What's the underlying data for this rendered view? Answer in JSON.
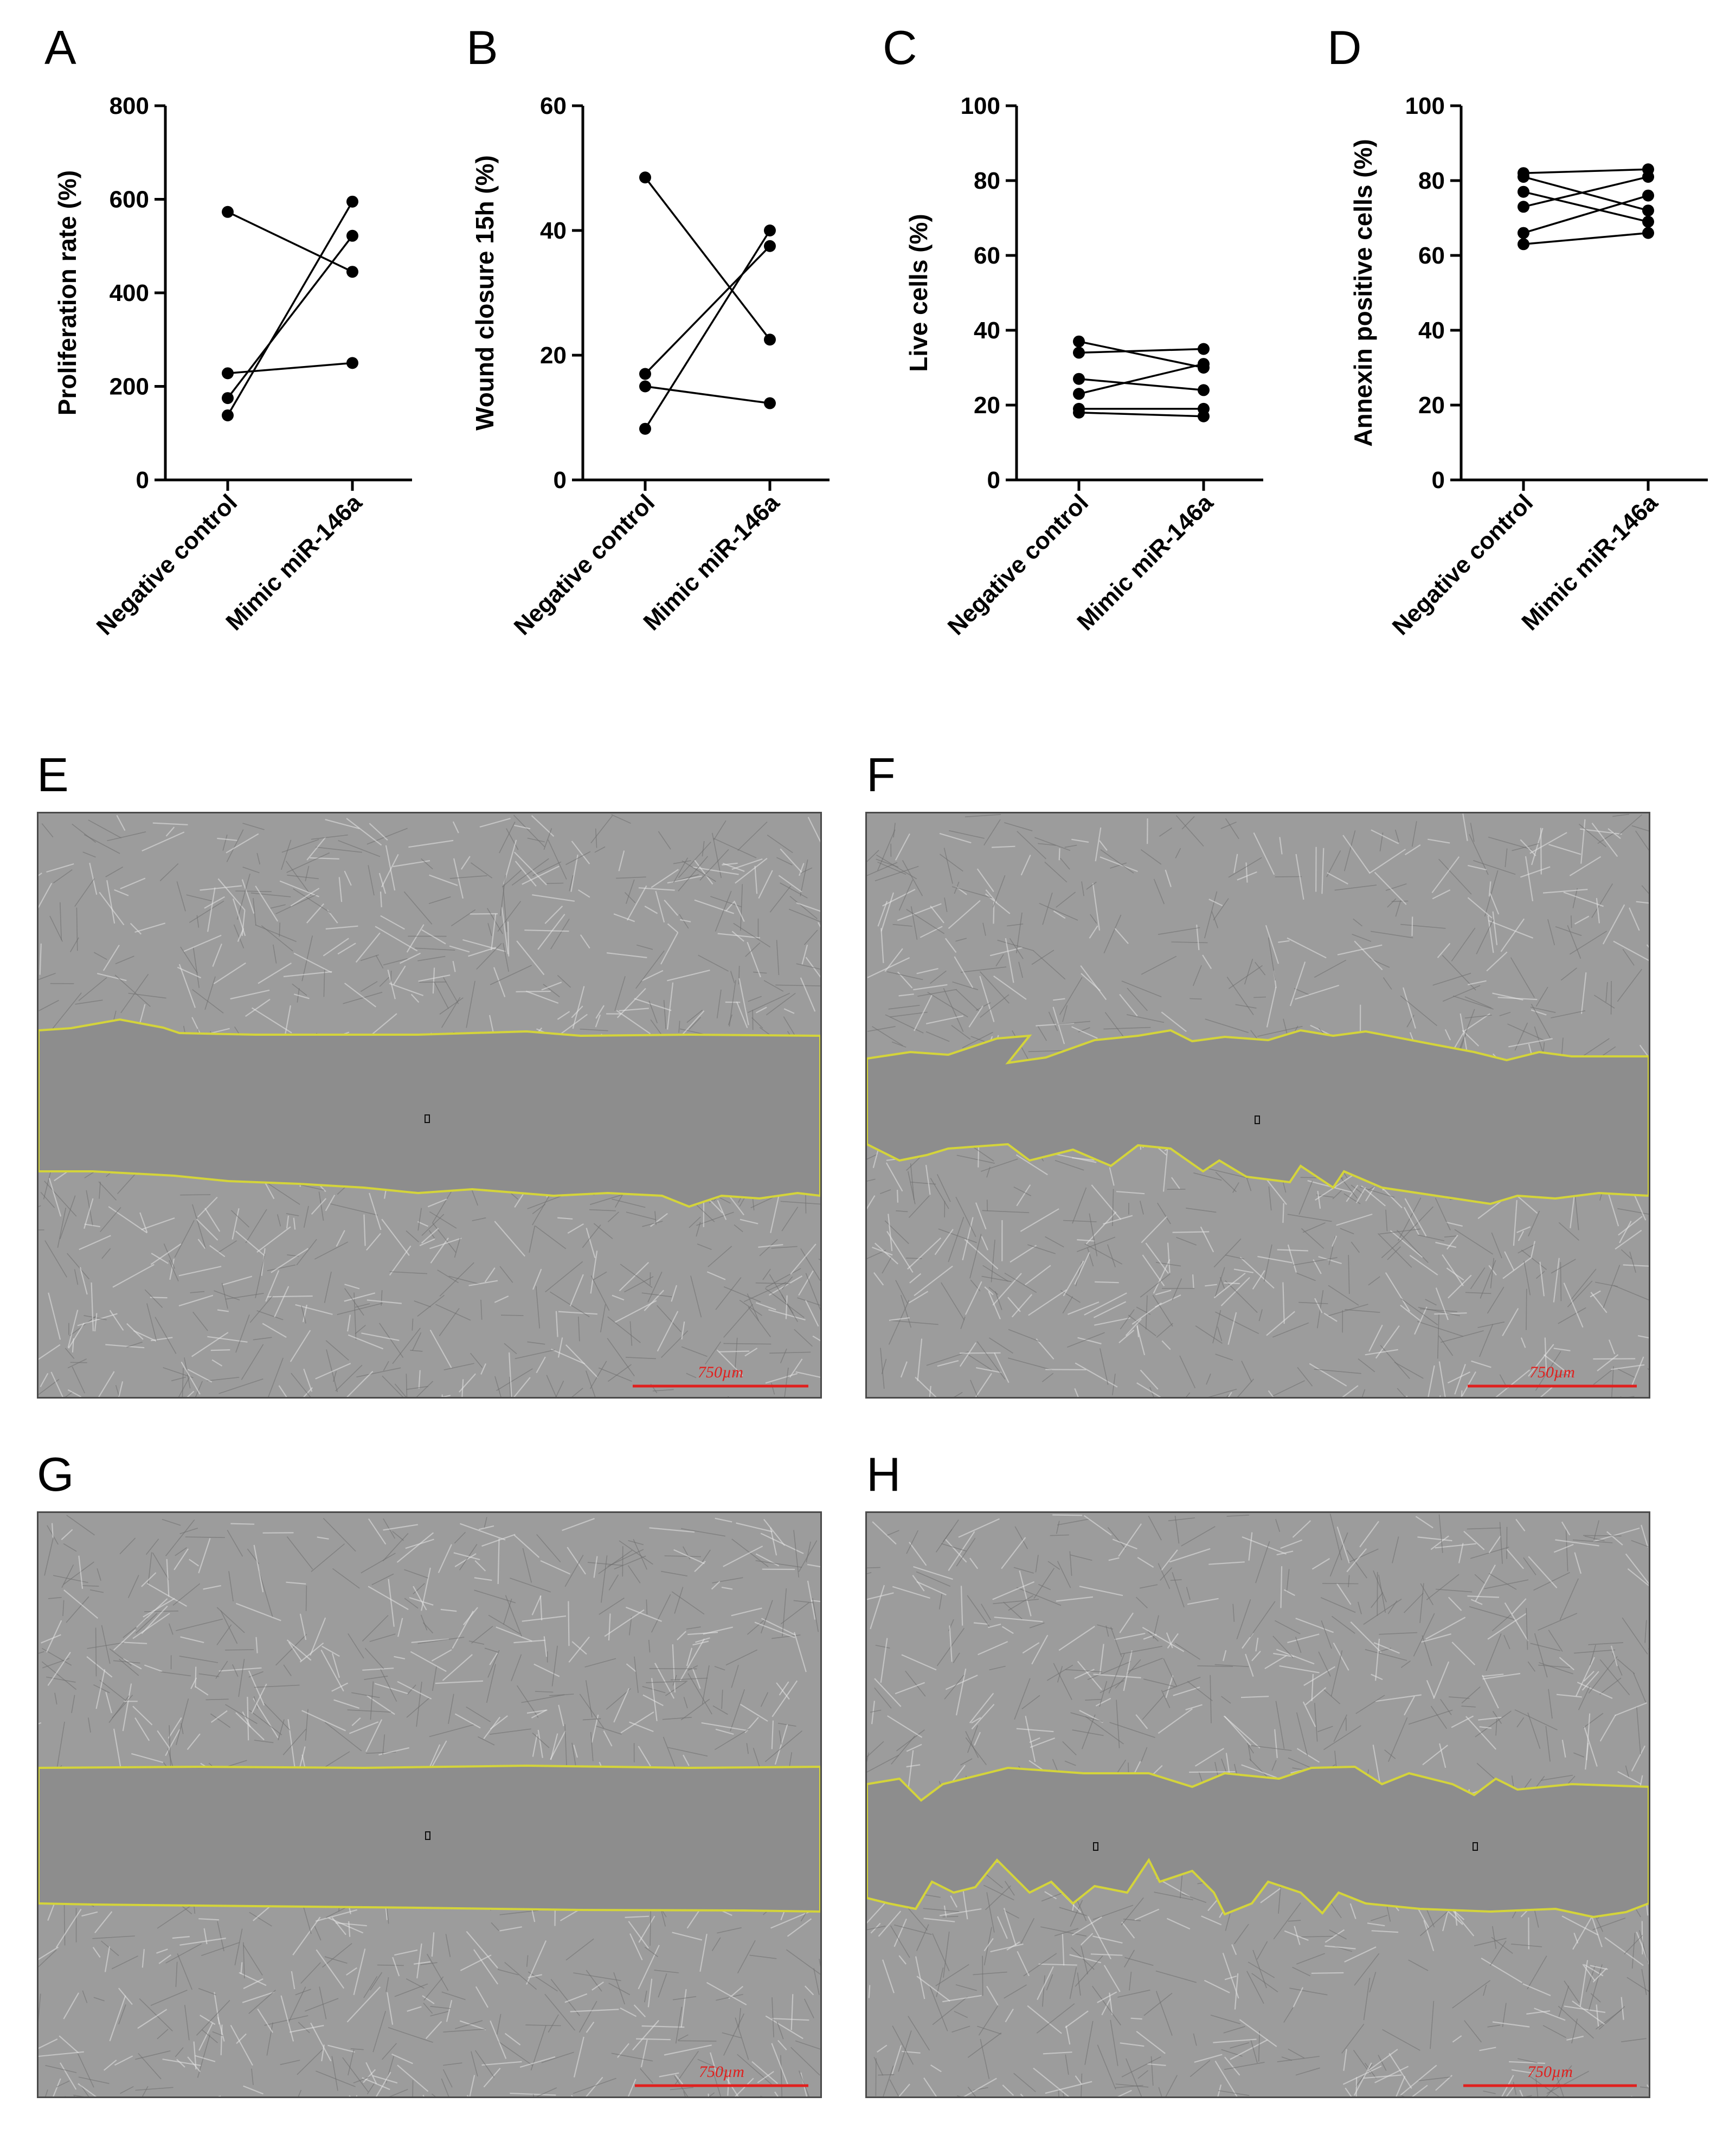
{
  "panel_letters": {
    "A": "A",
    "B": "B",
    "C": "C",
    "D": "D",
    "E": "E",
    "F": "F",
    "G": "G",
    "H": "H"
  },
  "chart_data": [
    {
      "type": "line",
      "panel": "A",
      "ylabel": "Proliferation rate (%)",
      "categories": [
        "Negative control",
        "Mimic miR-146a"
      ],
      "ylim": [
        0,
        800
      ],
      "yticks": [
        0,
        200,
        400,
        600,
        800
      ],
      "series": [
        {
          "values": [
            573,
            445
          ]
        },
        {
          "values": [
            228,
            250
          ]
        },
        {
          "values": [
            175,
            522
          ]
        },
        {
          "values": [
            138,
            595
          ]
        }
      ]
    },
    {
      "type": "line",
      "panel": "B",
      "ylabel": "Wound closure 15h (%)",
      "categories": [
        "Negative control",
        "Mimic miR-146a"
      ],
      "ylim": [
        0,
        60
      ],
      "yticks": [
        0,
        20,
        40,
        60
      ],
      "series": [
        {
          "values": [
            48.5,
            22.5
          ]
        },
        {
          "values": [
            17,
            37.5
          ]
        },
        {
          "values": [
            15,
            12.3
          ]
        },
        {
          "values": [
            8.2,
            40
          ]
        }
      ]
    },
    {
      "type": "line",
      "panel": "C",
      "ylabel": "Live cells (%)",
      "categories": [
        "Negative control",
        "Mimic miR-146a"
      ],
      "ylim": [
        0,
        100
      ],
      "yticks": [
        0,
        20,
        40,
        60,
        80,
        100
      ],
      "series": [
        {
          "values": [
            37,
            30
          ]
        },
        {
          "values": [
            34,
            35
          ]
        },
        {
          "values": [
            27,
            24
          ]
        },
        {
          "values": [
            23,
            31
          ]
        },
        {
          "values": [
            19,
            19
          ]
        },
        {
          "values": [
            18,
            17
          ]
        }
      ]
    },
    {
      "type": "line",
      "panel": "D",
      "ylabel": "Annexin positive cells (%)",
      "categories": [
        "Negative control",
        "Mimic miR-146a"
      ],
      "ylim": [
        0,
        100
      ],
      "yticks": [
        0,
        20,
        40,
        60,
        80,
        100
      ],
      "series": [
        {
          "values": [
            82,
            83
          ]
        },
        {
          "values": [
            81,
            72
          ]
        },
        {
          "values": [
            77,
            69
          ]
        },
        {
          "values": [
            73,
            81
          ]
        },
        {
          "values": [
            66,
            76
          ]
        },
        {
          "values": [
            63,
            66
          ]
        }
      ]
    }
  ],
  "micrographs": {
    "E": {
      "scale_label": "750µm"
    },
    "F": {
      "scale_label": "750µm"
    },
    "G": {
      "scale_label": "750µm"
    },
    "H": {
      "scale_label": "750µm"
    }
  },
  "colors": {
    "wound_outline": "#d4d43a",
    "scale_bar": "#e0201e",
    "cells_bg": "#9c9c9c",
    "wound_bg": "#8d8d8d"
  }
}
